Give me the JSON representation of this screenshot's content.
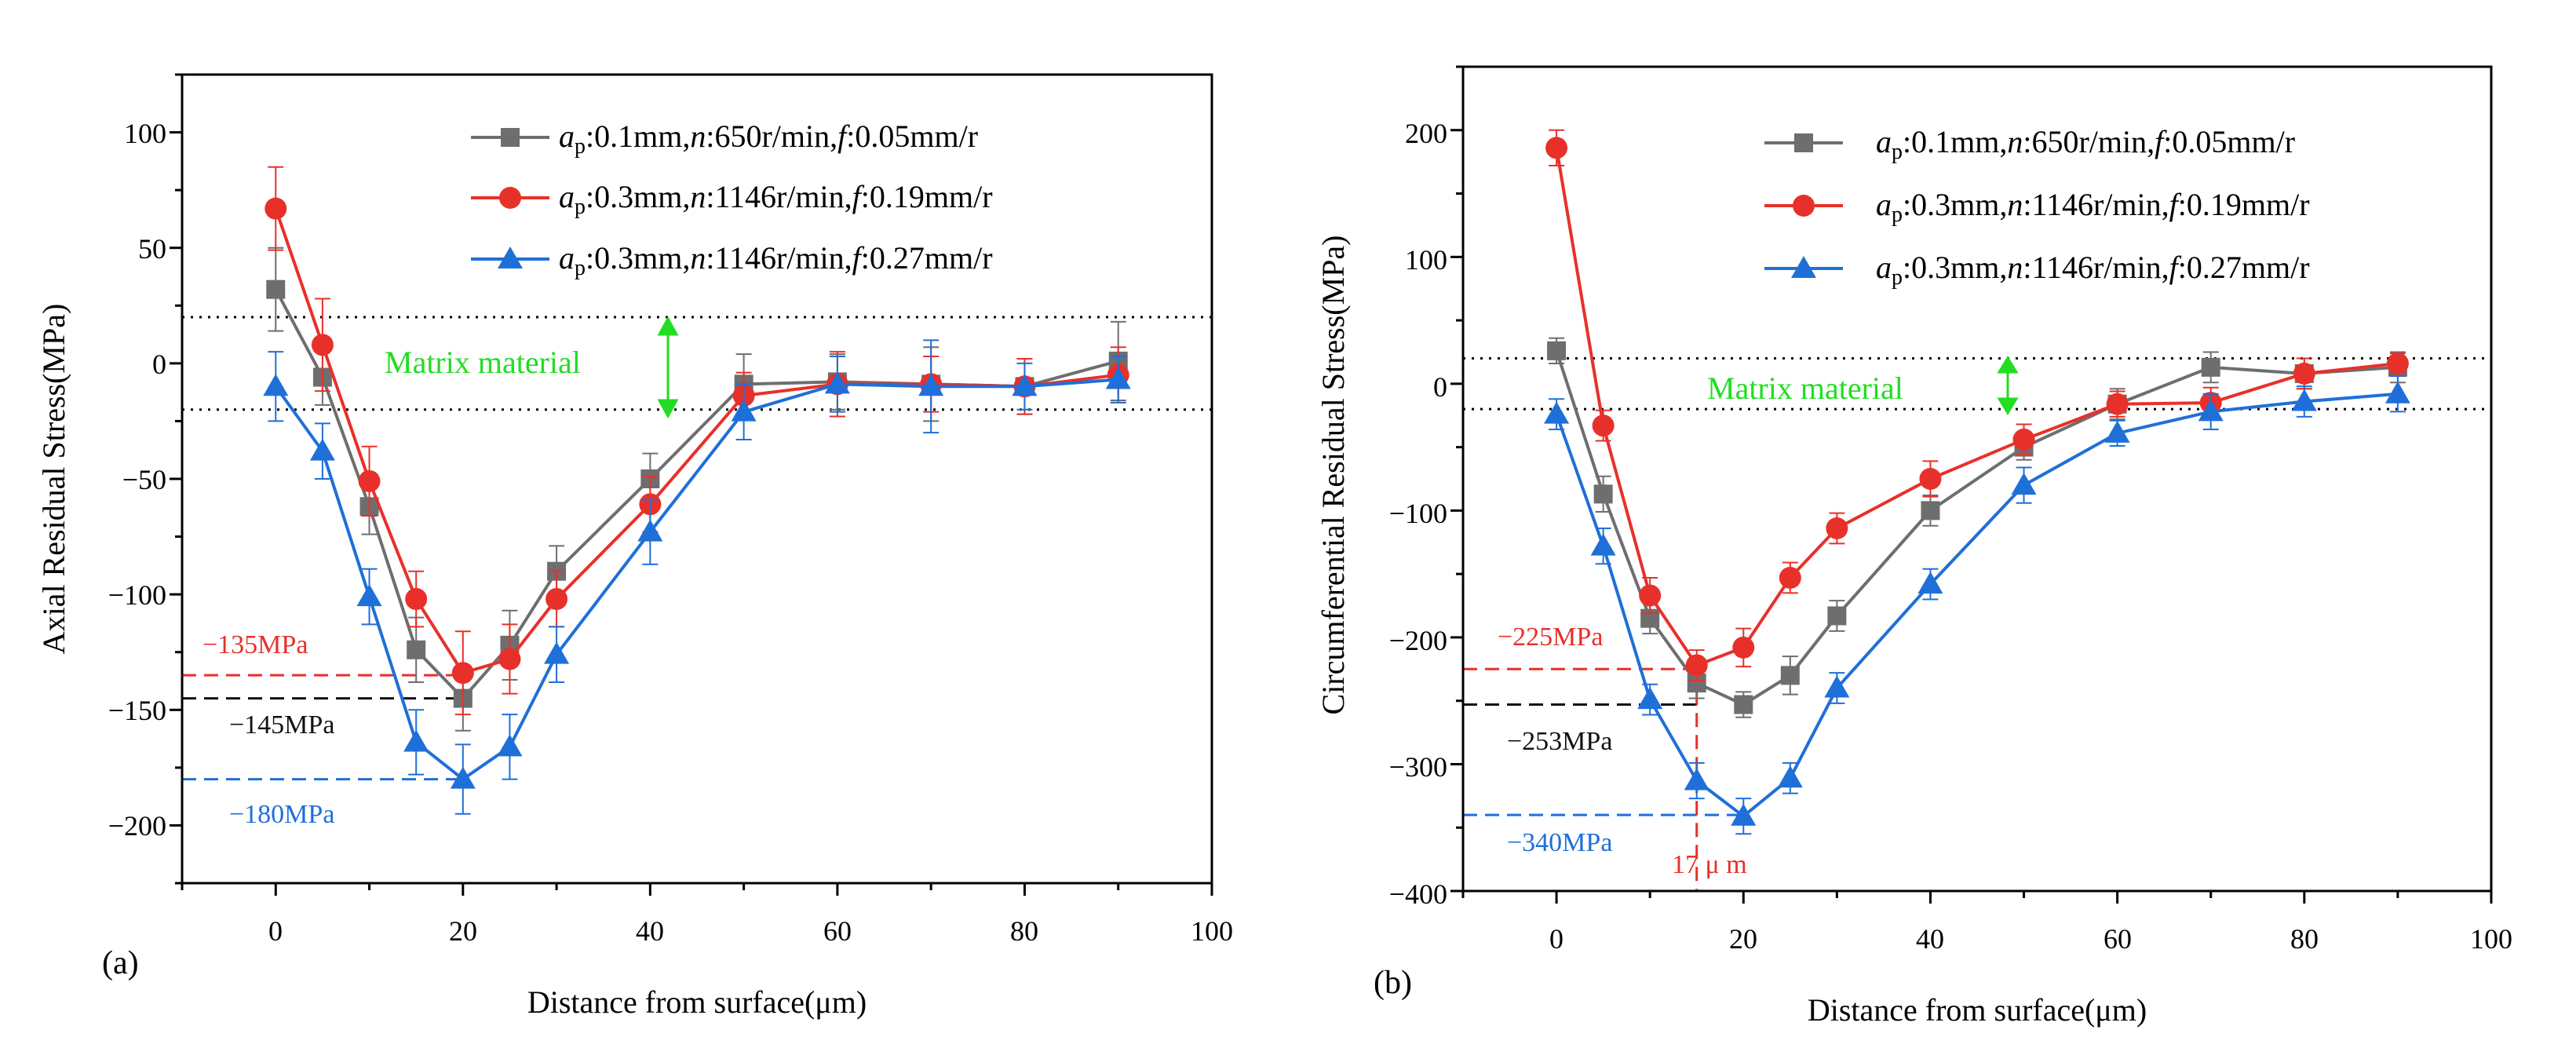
{
  "figure": {
    "panels": [
      {
        "panel_label": "(a)",
        "xlabel": "Distance from surface(μm)",
        "ylabel": "Axial Residual Stress(MPa)",
        "xticks": [
          "0",
          "20",
          "40",
          "60",
          "80",
          "100"
        ],
        "yticks": [
          "100",
          "50",
          "0",
          "−50",
          "−100",
          "−150",
          "−200"
        ],
        "matrix_label": "Matrix material",
        "annotations": [
          {
            "text": "−135MPa",
            "color": "#e8302a"
          },
          {
            "text": "−145MPa",
            "color": "#111111"
          },
          {
            "text": "−180MPa",
            "color": "#1f6fd8"
          }
        ],
        "legend": [
          {
            "label_a": "a",
            "label_sub": "p",
            "label_rest": ":0.1mm,",
            "label_n": "n",
            "label_rest2": ":650r/min,",
            "label_f": "f",
            "label_rest3": ":0.05mm/r"
          },
          {
            "label_a": "a",
            "label_sub": "p",
            "label_rest": ":0.3mm,",
            "label_n": "n",
            "label_rest2": ":1146r/min,",
            "label_f": "f",
            "label_rest3": ":0.19mm/r"
          },
          {
            "label_a": "a",
            "label_sub": "p",
            "label_rest": ":0.3mm,",
            "label_n": "n",
            "label_rest2": ":1146r/min,",
            "label_f": "f",
            "label_rest3": ":0.27mm/r"
          }
        ]
      },
      {
        "panel_label": "(b)",
        "xlabel": "Distance from surface(μm)",
        "ylabel": "Circumferential Residual Stress(MPa)",
        "xticks": [
          "0",
          "20",
          "40",
          "60",
          "80",
          "100"
        ],
        "yticks": [
          "200",
          "100",
          "0",
          "−100",
          "−200",
          "−300",
          "−400"
        ],
        "matrix_label": "Matrix material",
        "annotations": [
          {
            "text": "−225MPa",
            "color": "#e8302a"
          },
          {
            "text": "−253MPa",
            "color": "#111111"
          },
          {
            "text": "−340MPa",
            "color": "#1f6fd8"
          },
          {
            "text": "17 μ m",
            "color": "#e8302a"
          }
        ],
        "legend": [
          {
            "label_a": "a",
            "label_sub": "p",
            "label_rest": ":0.1mm,",
            "label_n": "n",
            "label_rest2": ":650r/min,",
            "label_f": "f",
            "label_rest3": ":0.05mm/r"
          },
          {
            "label_a": "a",
            "label_sub": "p",
            "label_rest": ":0.3mm,",
            "label_n": "n",
            "label_rest2": ":1146r/min,",
            "label_f": "f",
            "label_rest3": ":0.19mm/r"
          },
          {
            "label_a": "a",
            "label_sub": "p",
            "label_rest": ":0.3mm,",
            "label_n": "n",
            "label_rest2": ":1146r/min,",
            "label_f": "f",
            "label_rest3": ":0.27mm/r"
          }
        ]
      }
    ]
  },
  "chart_data": [
    {
      "type": "line",
      "title": "",
      "panel": "(a)",
      "xlabel": "Distance from surface(μm)",
      "ylabel": "Axial Residual Stress(MPa)",
      "xlim": [
        -10,
        100
      ],
      "ylim": [
        -225,
        125
      ],
      "grid": false,
      "legend_position": "top-right",
      "x": [
        0,
        5,
        10,
        15,
        20,
        25,
        30,
        40,
        50,
        60,
        70,
        80,
        90
      ],
      "series": [
        {
          "name": "ap:0.1mm,n:650r/min,f:0.05mm/r",
          "color": "#6e6e6e",
          "marker": "square",
          "values": [
            32,
            -6,
            -62,
            -124,
            -145,
            -122,
            -90,
            -50,
            -9,
            -8,
            -9,
            -10,
            1
          ],
          "errors": [
            18,
            12,
            12,
            14,
            14,
            15,
            11,
            11,
            13,
            12,
            16,
            12,
            17
          ]
        },
        {
          "name": "ap:0.3mm,n:1146r/min,f:0.19mm/r",
          "color": "#e8302a",
          "marker": "circle",
          "values": [
            67,
            8,
            -51,
            -102,
            -134,
            -128,
            -102,
            -61,
            -14,
            -9,
            -9,
            -10,
            -5
          ],
          "errors": [
            18,
            20,
            15,
            12,
            18,
            15,
            12,
            12,
            10,
            14,
            12,
            12,
            12
          ]
        },
        {
          "name": "ap:0.3mm,n:1146r/min,f:0.27mm/r",
          "color": "#1f6fd8",
          "marker": "triangle",
          "values": [
            -10,
            -38,
            -101,
            -164,
            -180,
            -166,
            -126,
            -73,
            -21,
            -9,
            -10,
            -10,
            -7
          ],
          "errors": [
            15,
            12,
            12,
            14,
            15,
            14,
            12,
            14,
            12,
            12,
            20,
            10,
            10
          ]
        }
      ],
      "matrix_band": [
        -20,
        20
      ],
      "reference_lines": [
        {
          "y": -135,
          "x_end": 20,
          "label": "−135MPa",
          "color": "#e8302a"
        },
        {
          "y": -145,
          "x_end": 20,
          "label": "−145MPa",
          "color": "#111111"
        },
        {
          "y": -180,
          "x_end": 20,
          "label": "−180MPa",
          "color": "#1f6fd8"
        }
      ]
    },
    {
      "type": "line",
      "title": "",
      "panel": "(b)",
      "xlabel": "Distance from surface(μm)",
      "ylabel": "Circumferential Residual Stress(MPa)",
      "xlim": [
        -10,
        100
      ],
      "ylim": [
        -400,
        250
      ],
      "grid": false,
      "legend_position": "top-right",
      "x": [
        0,
        5,
        10,
        15,
        20,
        25,
        30,
        40,
        50,
        60,
        70,
        80,
        90
      ],
      "series": [
        {
          "name": "ap:0.1mm,n:650r/min,f:0.05mm/r",
          "color": "#6e6e6e",
          "marker": "square",
          "values": [
            26,
            -87,
            -185,
            -236,
            -253,
            -230,
            -183,
            -100,
            -50,
            -16,
            13,
            8,
            13
          ],
          "errors": [
            10,
            14,
            12,
            12,
            10,
            15,
            12,
            12,
            10,
            12,
            12,
            12,
            12
          ]
        },
        {
          "name": "ap:0.3mm,n:1146r/min,f:0.19mm/r",
          "color": "#e8302a",
          "marker": "circle",
          "values": [
            186,
            -33,
            -167,
            -222,
            -208,
            -153,
            -114,
            -75,
            -44,
            -16,
            -15,
            8,
            16
          ],
          "errors": [
            14,
            12,
            14,
            12,
            15,
            12,
            12,
            14,
            12,
            10,
            12,
            12,
            8
          ]
        },
        {
          "name": "ap:0.3mm,n:1146r/min,f:0.27mm/r",
          "color": "#1f6fd8",
          "marker": "triangle",
          "values": [
            -24,
            -128,
            -249,
            -313,
            -341,
            -311,
            -240,
            -158,
            -80,
            -39,
            -22,
            -14,
            -8
          ],
          "errors": [
            12,
            14,
            12,
            14,
            14,
            12,
            12,
            12,
            14,
            10,
            14,
            12,
            14
          ]
        }
      ],
      "matrix_band": [
        -20,
        20
      ],
      "reference_lines": [
        {
          "y": -225,
          "x_end": 15,
          "label": "−225MPa",
          "color": "#e8302a"
        },
        {
          "y": -253,
          "x_end": 15,
          "label": "−253MPa",
          "color": "#111111"
        },
        {
          "y": -340,
          "x_end": 20,
          "label": "−340MPa",
          "color": "#1f6fd8"
        }
      ],
      "vertical_marker": {
        "x": 15,
        "label": "17 μ m",
        "color": "#e8302a"
      }
    }
  ]
}
